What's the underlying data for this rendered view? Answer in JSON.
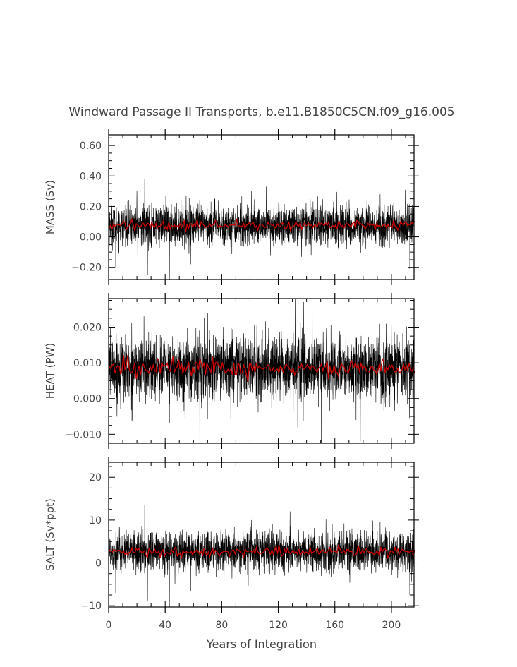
{
  "chart_data": {
    "type": "line",
    "title": "Windward Passage II Transports, b.e11.B1850C5CN.f09_g16.005",
    "xlabel": "Years of Integration",
    "xlim": [
      0,
      216
    ],
    "xticks": [
      0,
      40,
      80,
      120,
      160,
      200
    ],
    "xtick_labels": [
      "0",
      "40",
      "80",
      "120",
      "160",
      "200"
    ],
    "series_colors": {
      "monthly": "#000000",
      "annual": "#cc0000"
    },
    "panels": [
      {
        "ylabel": "MASS (Sv)",
        "ylim": [
          -0.28,
          0.67
        ],
        "yticks": [
          -0.2,
          0,
          0.2,
          0.4,
          0.6
        ],
        "ytick_labels": [
          "−0.20",
          "0.00",
          "0.20",
          "0.40",
          "0.60"
        ],
        "mean": 0.075,
        "noise_sd": 0.065,
        "annual_mean_amplitude": 0.015,
        "spikes": [
          [
            117,
            0.66
          ],
          [
            25.5,
            0.38
          ],
          [
            20,
            0.3
          ],
          [
            27.5,
            -0.25
          ],
          [
            43,
            -0.28
          ],
          [
            101,
            0.3
          ],
          [
            111.5,
            0.33
          ],
          [
            114.5,
            -0.12
          ],
          [
            192,
            0.28
          ],
          [
            213,
            -0.21
          ],
          [
            58,
            -0.18
          ],
          [
            5,
            -0.2
          ]
        ]
      },
      {
        "ylabel": "HEAT (PW)",
        "ylim": [
          -0.0125,
          0.028
        ],
        "yticks": [
          -0.01,
          0,
          0.01,
          0.02
        ],
        "ytick_labels": [
          "−0.010",
          "0.000",
          "0.010",
          "0.020"
        ],
        "mean": 0.0085,
        "noise_sd": 0.0045,
        "annual_mean_amplitude": 0.0012,
        "spikes": [
          [
            132,
            0.028
          ],
          [
            144,
            0.027
          ],
          [
            138,
            0.027
          ],
          [
            150.5,
            -0.0125
          ],
          [
            64.5,
            -0.0125
          ],
          [
            43,
            -0.007
          ],
          [
            178,
            -0.012
          ],
          [
            175,
            -0.006
          ],
          [
            25,
            0.023
          ],
          [
            70,
            0.024
          ]
        ]
      },
      {
        "ylabel": "SALT (Sv*ppt)",
        "ylim": [
          -10.3,
          23.5
        ],
        "yticks": [
          -10,
          0,
          10,
          20
        ],
        "ytick_labels": [
          "−10",
          "0",
          "10",
          "20"
        ],
        "mean": 2.6,
        "noise_sd": 2.3,
        "annual_mean_amplitude": 0.6,
        "spikes": [
          [
            117,
            23.2
          ],
          [
            25.5,
            13.6
          ],
          [
            27.5,
            -8.8
          ],
          [
            43,
            -10.3
          ],
          [
            5,
            -7
          ],
          [
            58,
            -6.5
          ],
          [
            101,
            10
          ],
          [
            213,
            -7.5
          ],
          [
            192,
            9.5
          ]
        ]
      }
    ]
  }
}
